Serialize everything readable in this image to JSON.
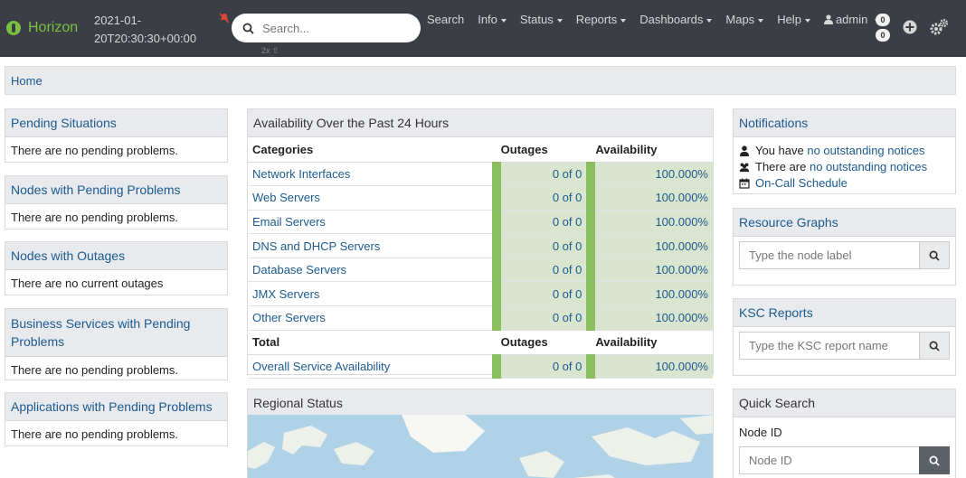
{
  "navbar": {
    "brand": "Horizon",
    "datetime": "2021-01-20T20:30:30+00:00",
    "search_placeholder": "Search...",
    "search_hint": "2x ⇧",
    "menu": [
      "Search",
      "Info",
      "Status",
      "Reports",
      "Dashboards",
      "Maps",
      "Help"
    ],
    "user": "admin",
    "badge_top": "0",
    "badge_bottom": "0"
  },
  "breadcrumb": {
    "home": "Home"
  },
  "left": {
    "pending_situations": {
      "title": "Pending Situations",
      "text": "There are no pending problems."
    },
    "nodes_pending": {
      "title": "Nodes with Pending Problems",
      "text": "There are no pending problems."
    },
    "nodes_outages": {
      "title": "Nodes with Outages",
      "text": "There are no current outages"
    },
    "business_services": {
      "title": "Business Services with Pending Problems",
      "text": "There are no pending problems."
    },
    "applications": {
      "title": "Applications with Pending Problems",
      "text": "There are no pending problems."
    }
  },
  "availability": {
    "title": "Availability Over the Past 24 Hours",
    "headers": {
      "categories": "Categories",
      "outages": "Outages",
      "availability": "Availability"
    },
    "rows": [
      {
        "name": "Network Interfaces",
        "outages": "0 of 0",
        "availability": "100.000%"
      },
      {
        "name": "Web Servers",
        "outages": "0 of 0",
        "availability": "100.000%"
      },
      {
        "name": "Email Servers",
        "outages": "0 of 0",
        "availability": "100.000%"
      },
      {
        "name": "DNS and DHCP Servers",
        "outages": "0 of 0",
        "availability": "100.000%"
      },
      {
        "name": "Database Servers",
        "outages": "0 of 0",
        "availability": "100.000%"
      },
      {
        "name": "JMX Servers",
        "outages": "0 of 0",
        "availability": "100.000%"
      },
      {
        "name": "Other Servers",
        "outages": "0 of 0",
        "availability": "100.000%"
      }
    ],
    "total_headers": {
      "total": "Total",
      "outages": "Outages",
      "availability": "Availability"
    },
    "total_row": {
      "name": "Overall Service Availability",
      "outages": "0 of 0",
      "availability": "100.000%"
    }
  },
  "regional": {
    "title": "Regional Status"
  },
  "notifications": {
    "title": "Notifications",
    "line1_prefix": "You have ",
    "line1_link": "no outstanding notices",
    "line2_prefix": "There are ",
    "line2_link": "no outstanding notices",
    "oncall": "On-Call Schedule"
  },
  "resource_graphs": {
    "title": "Resource Graphs",
    "placeholder": "Type the node label"
  },
  "ksc_reports": {
    "title": "KSC Reports",
    "placeholder": "Type the KSC report name"
  },
  "quick_search": {
    "title": "Quick Search",
    "node_id_label": "Node ID",
    "node_id_placeholder": "Node ID"
  },
  "colors": {
    "navbar": "#3b3f45",
    "brand": "#79c142",
    "link": "#1c5a8f",
    "bar": "#8bbf5d",
    "cell": "#d9e5cf"
  }
}
